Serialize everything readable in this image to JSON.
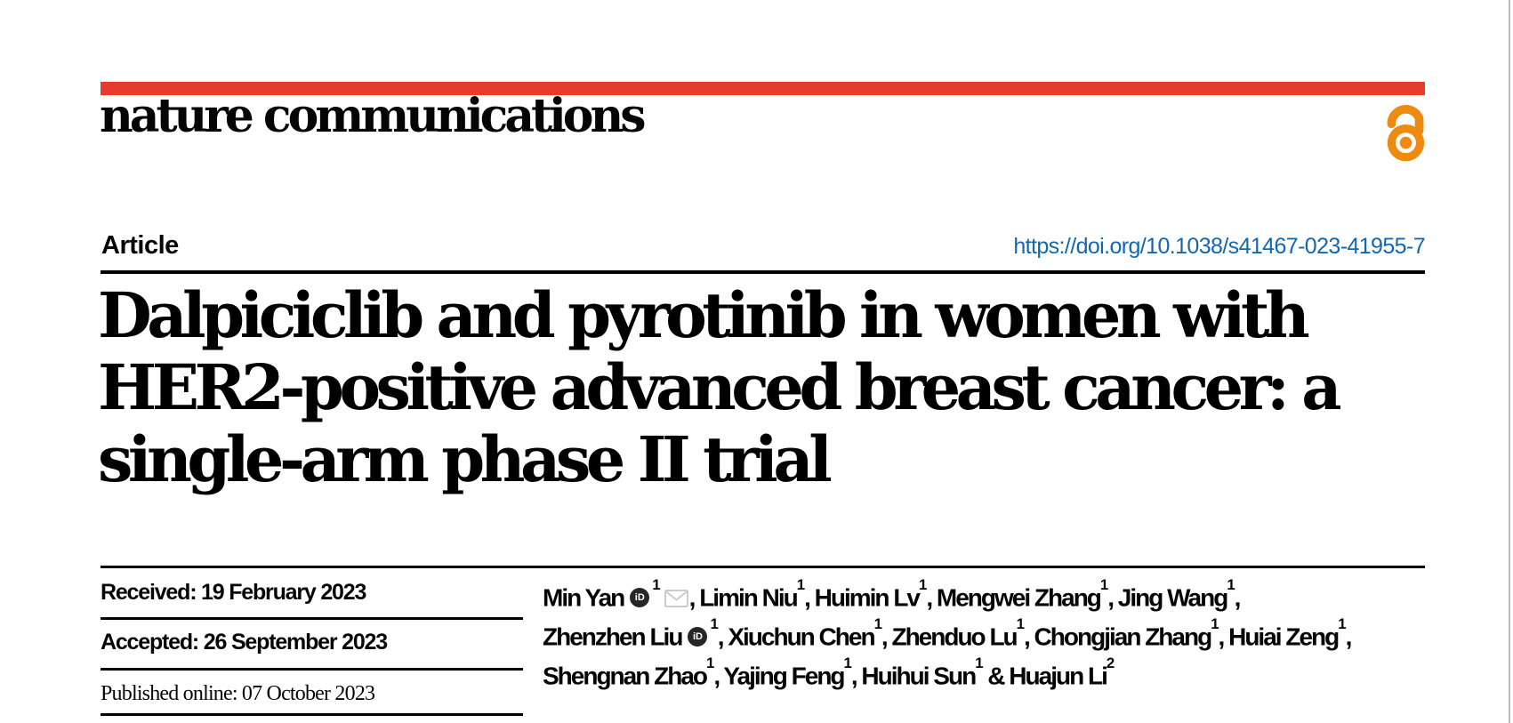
{
  "theme": {
    "background": "#ffffff",
    "brand_red": "#e63c2d",
    "open_access_orange": "#ef8a10",
    "link_blue": "#1168b1",
    "rule_black": "#000000",
    "text_black": "#060606",
    "envelope_gray": "#cccccc",
    "page_edge_gray": "#bdbdbd"
  },
  "masthead": {
    "journal_name": "nature communications",
    "open_access_icon": "open-access-lock-icon"
  },
  "article_header": {
    "kicker": "Article",
    "doi": "https://doi.org/10.1038/s41467-023-41955-7",
    "title_line_1": "Dalpiciclib and pyrotinib in women with",
    "title_line_2": "HER2-positive advanced breast cancer: a",
    "title_line_3": "single-arm phase II trial"
  },
  "history": {
    "received": "Received: 19 February 2023",
    "accepted": "Accepted: 26 September 2023",
    "published": "Published online: 07 October 2023"
  },
  "icons": {
    "orcid_label": "iD"
  },
  "authors": {
    "lines": [
      [
        {
          "t": "text",
          "v": "Min Yan"
        },
        {
          "t": "orcid"
        },
        {
          "t": "sup",
          "v": "1"
        },
        {
          "t": "mail"
        },
        {
          "t": "text",
          "v": ", Limin Niu"
        },
        {
          "t": "sup",
          "v": "1"
        },
        {
          "t": "text",
          "v": ", Huimin Lv"
        },
        {
          "t": "sup",
          "v": "1"
        },
        {
          "t": "text",
          "v": ", Mengwei Zhang"
        },
        {
          "t": "sup",
          "v": "1"
        },
        {
          "t": "text",
          "v": ", Jing Wang"
        },
        {
          "t": "sup",
          "v": "1"
        },
        {
          "t": "text",
          "v": ","
        }
      ],
      [
        {
          "t": "text",
          "v": "Zhenzhen Liu"
        },
        {
          "t": "orcid"
        },
        {
          "t": "sup",
          "v": "1"
        },
        {
          "t": "text",
          "v": ", Xiuchun Chen"
        },
        {
          "t": "sup",
          "v": "1"
        },
        {
          "t": "text",
          "v": ", Zhenduo Lu"
        },
        {
          "t": "sup",
          "v": "1"
        },
        {
          "t": "text",
          "v": ", Chongjian Zhang"
        },
        {
          "t": "sup",
          "v": "1"
        },
        {
          "t": "text",
          "v": ", Huiai Zeng"
        },
        {
          "t": "sup",
          "v": "1"
        },
        {
          "t": "text",
          "v": ","
        }
      ],
      [
        {
          "t": "text",
          "v": "Shengnan Zhao"
        },
        {
          "t": "sup",
          "v": "1"
        },
        {
          "t": "text",
          "v": ", Yajing Feng"
        },
        {
          "t": "sup",
          "v": "1"
        },
        {
          "t": "text",
          "v": ", Huihui Sun"
        },
        {
          "t": "sup",
          "v": "1"
        },
        {
          "t": "text",
          "v": " & Huajun Li"
        },
        {
          "t": "sup",
          "v": "2"
        }
      ]
    ]
  }
}
